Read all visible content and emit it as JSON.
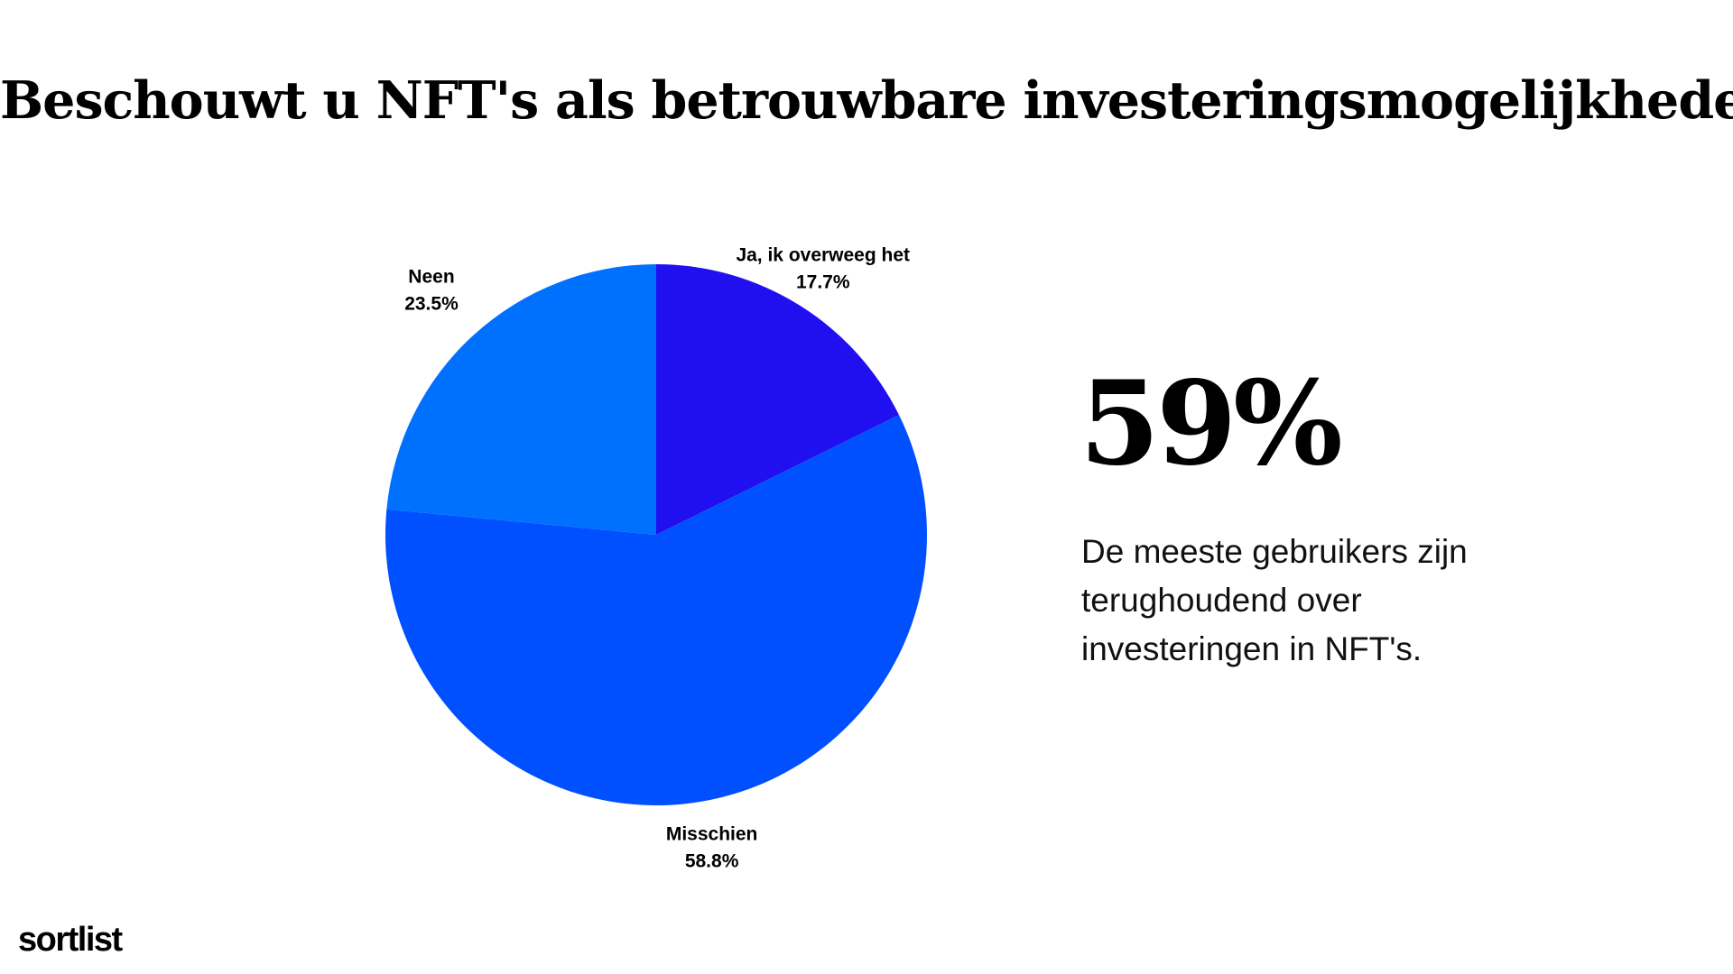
{
  "slide": {
    "title": "Beschouwt u NFT's als betrouwbare investeringsmogelijkheden?",
    "highlight_value": "59%",
    "highlight_text": "De meeste gebruikers zijn terughoudend over investeringen in NFT's.",
    "brand": "sortlist"
  },
  "chart_data": {
    "type": "pie",
    "title": "Beschouwt u NFT's als betrouwbare investeringsmogelijkheden?",
    "categories": [
      "Ja, ik overweeg het",
      "Misschien",
      "Neen"
    ],
    "values": [
      17.7,
      58.8,
      23.5
    ],
    "labels": [
      "17.7%",
      "58.8%",
      "23.5%"
    ],
    "colors": [
      "#2010F0",
      "#0050FF",
      "#0070FF"
    ],
    "start": "top",
    "direction": "clockwise"
  }
}
